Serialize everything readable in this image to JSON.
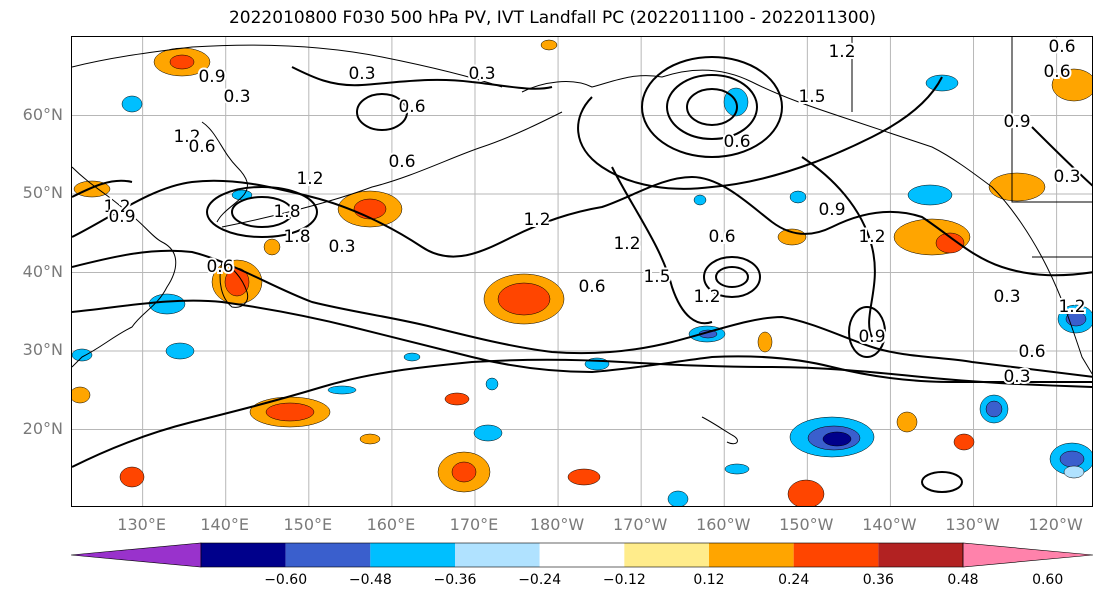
{
  "title": "2022010800 F030 500 hPa PV, IVT Landfall PC (2022011100 - 2022011300)",
  "lat_labels": [
    "60°N",
    "50°N",
    "40°N",
    "30°N",
    "20°N"
  ],
  "lat_values": [
    60,
    50,
    40,
    30,
    20
  ],
  "lon_labels": [
    "130°E",
    "140°E",
    "150°E",
    "160°E",
    "170°E",
    "180°W",
    "170°W",
    "160°W",
    "150°W",
    "140°W",
    "130°W",
    "120°W"
  ],
  "lon_values": [
    130,
    140,
    150,
    160,
    170,
    180,
    190,
    200,
    210,
    220,
    230,
    240
  ],
  "contour_labels": [
    "0.3",
    "1.2",
    "1.2",
    "0.6",
    "1.2",
    "1.8",
    "0.9",
    "0.3",
    "0.3",
    "0.6",
    "0.6",
    "1.2",
    "0.6",
    "1.5",
    "0.6",
    "0.9",
    "1.5",
    "1.2",
    "1.2",
    "0.9",
    "0.6",
    "1.2",
    "0.3",
    "0.9",
    "0.6",
    "0.3",
    "0.3",
    "0.6",
    "1.2",
    "0.6",
    "0.9",
    "1.8",
    "0.3",
    "0.6",
    "1.2"
  ],
  "colorbar": {
    "ticks": [
      "−0.60",
      "−0.48",
      "−0.36",
      "−0.24",
      "−0.12",
      "0.12",
      "0.24",
      "0.36",
      "0.48",
      "0.60"
    ],
    "colors": [
      "#9932cc",
      "#00008b",
      "#3a5fcd",
      "#00bfff",
      "#b0e2ff",
      "#ffffff",
      "#ffec8b",
      "#ffa500",
      "#ff4500",
      "#b22222",
      "#ff82ab"
    ]
  }
}
